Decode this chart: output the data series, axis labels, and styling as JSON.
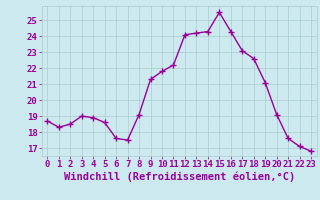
{
  "x": [
    0,
    1,
    2,
    3,
    4,
    5,
    6,
    7,
    8,
    9,
    10,
    11,
    12,
    13,
    14,
    15,
    16,
    17,
    18,
    19,
    20,
    21,
    22,
    23
  ],
  "y": [
    18.7,
    18.3,
    18.5,
    19.0,
    18.9,
    18.6,
    17.6,
    17.5,
    19.1,
    21.3,
    21.8,
    22.2,
    24.1,
    24.2,
    24.3,
    25.5,
    24.3,
    23.1,
    22.6,
    21.1,
    19.1,
    17.6,
    17.1,
    16.8
  ],
  "line_color": "#990099",
  "marker": "+",
  "markersize": 4,
  "linewidth": 1.0,
  "xlabel": "Windchill (Refroidissement éolien,°C)",
  "xlim": [
    -0.5,
    23.5
  ],
  "ylim": [
    16.5,
    25.9
  ],
  "yticks": [
    17,
    18,
    19,
    20,
    21,
    22,
    23,
    24,
    25
  ],
  "xticks": [
    0,
    1,
    2,
    3,
    4,
    5,
    6,
    7,
    8,
    9,
    10,
    11,
    12,
    13,
    14,
    15,
    16,
    17,
    18,
    19,
    20,
    21,
    22,
    23
  ],
  "background_color": "#cce9f0",
  "grid_color": "#aacccc",
  "tick_label_color": "#990099",
  "xlabel_color": "#990099",
  "tick_fontsize": 6.5,
  "xlabel_fontsize": 7.5
}
